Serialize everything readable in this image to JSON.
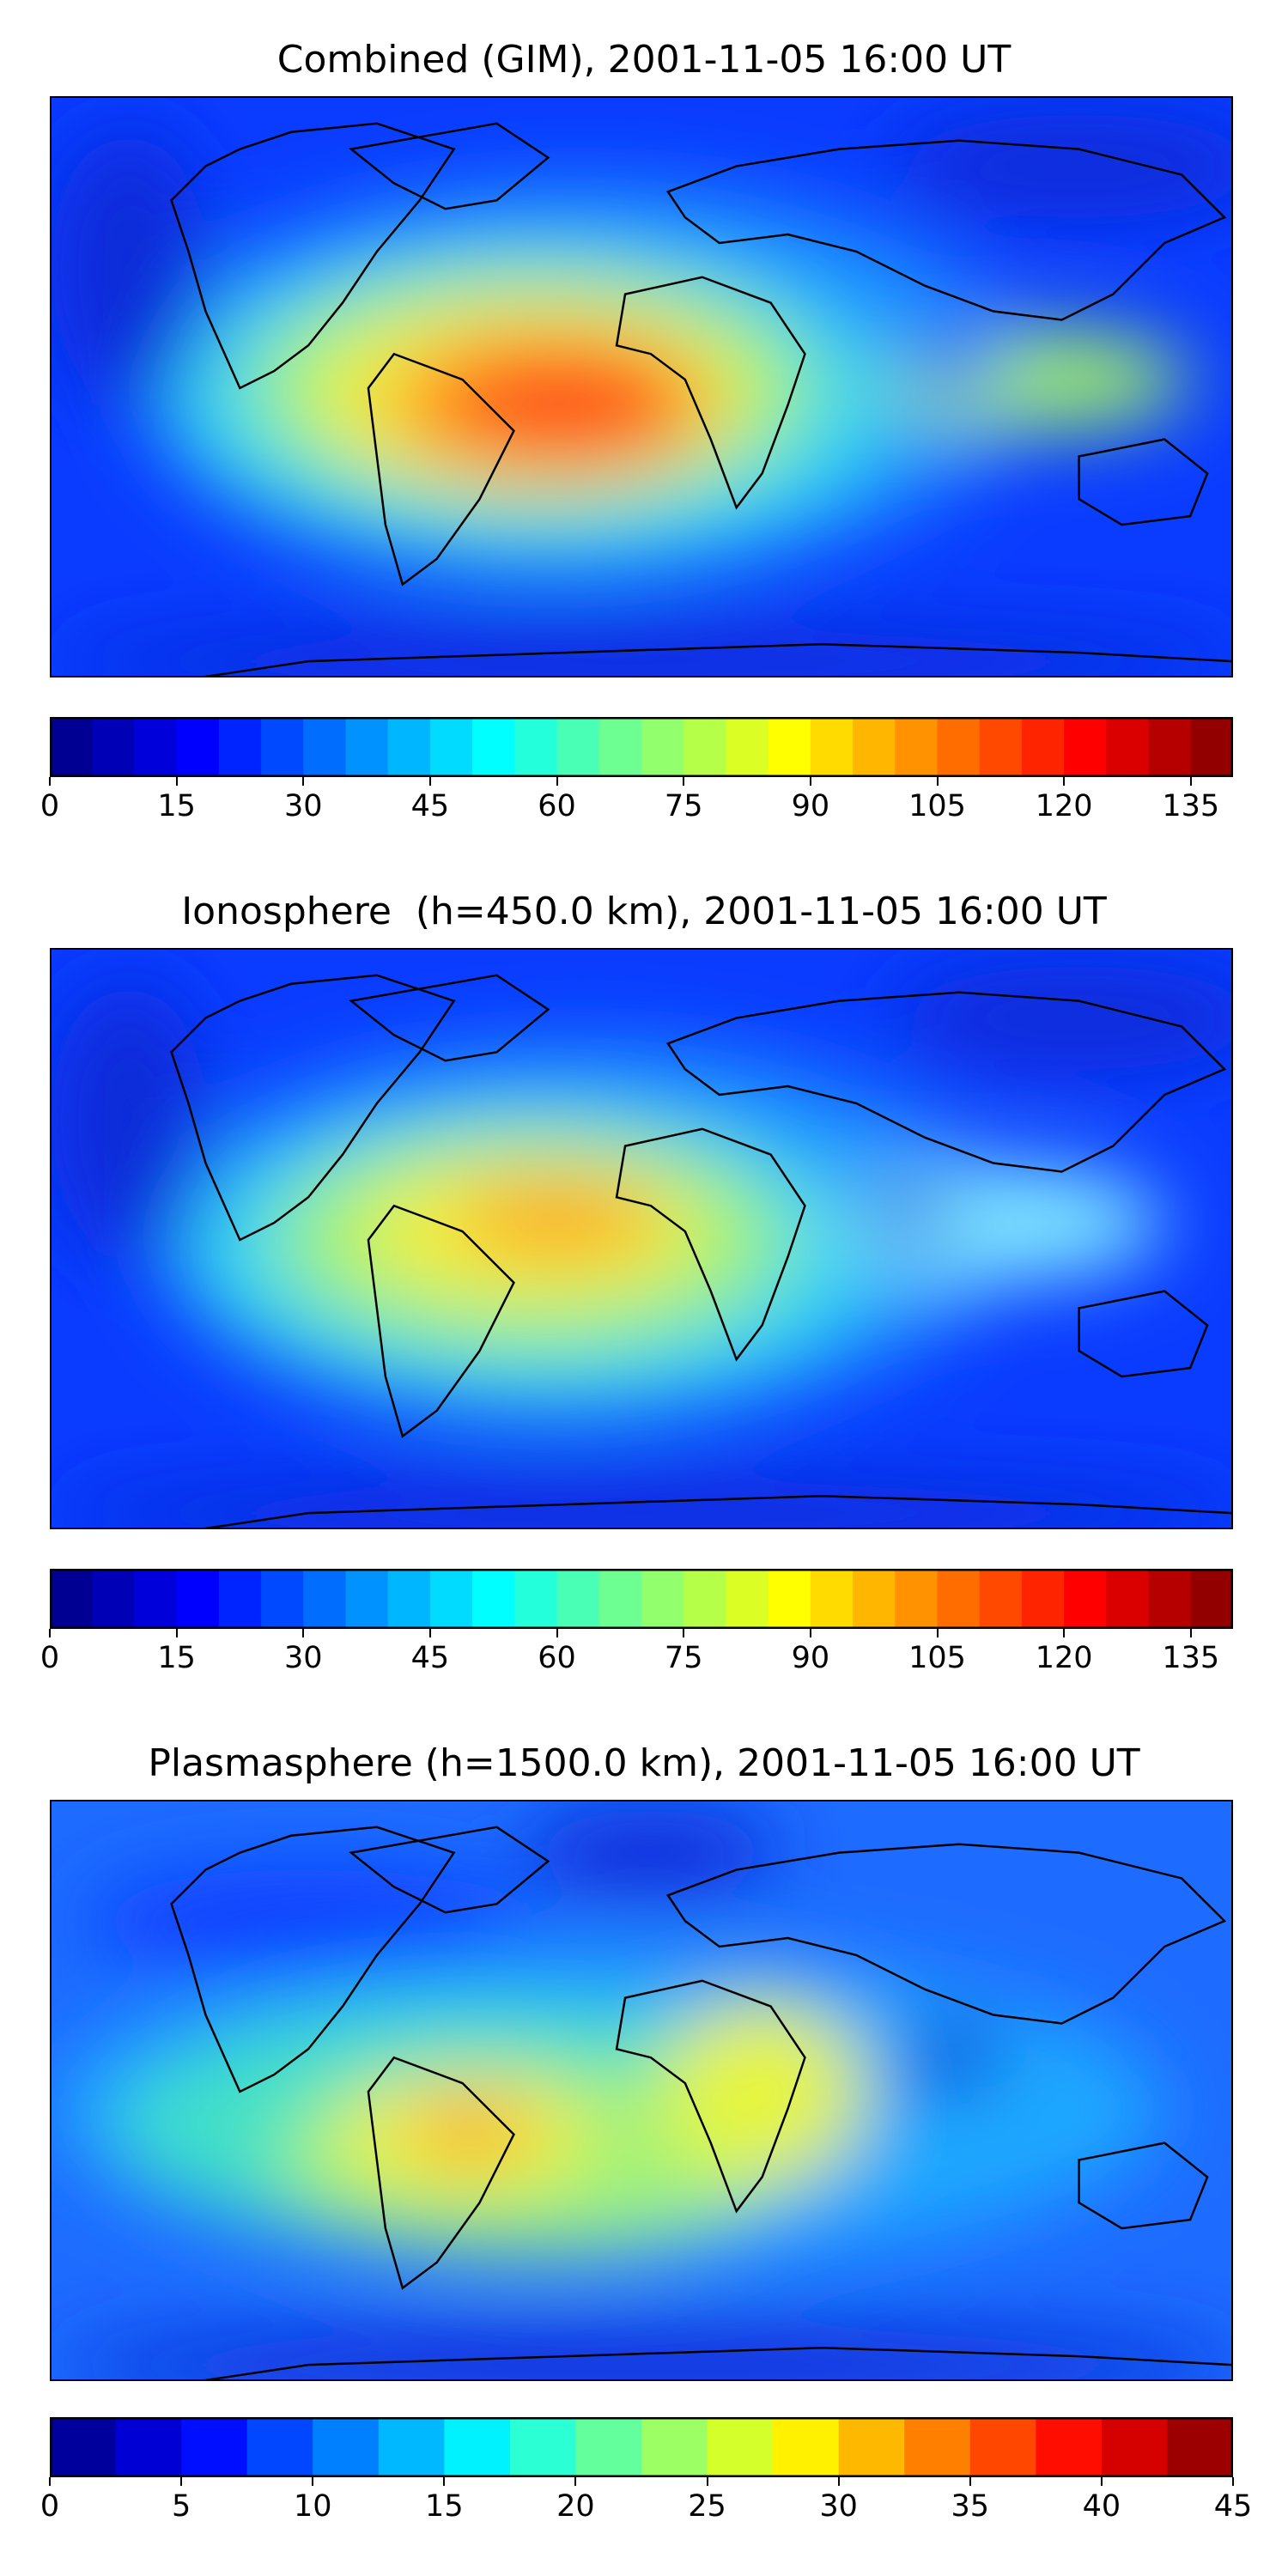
{
  "panels": [
    {
      "title": "Combined (GIM), 2001-11-05 16:00 UT",
      "colorbar": {
        "min": 0,
        "max": 140,
        "levels": 28,
        "ticks": [
          "0",
          "15",
          "30",
          "45",
          "60",
          "75",
          "90",
          "105",
          "120",
          "135"
        ]
      }
    },
    {
      "title": "Ionosphere  (h=450.0 km), 2001-11-05 16:00 UT",
      "colorbar": {
        "min": 0,
        "max": 140,
        "levels": 28,
        "ticks": [
          "0",
          "15",
          "30",
          "45",
          "60",
          "75",
          "90",
          "105",
          "120",
          "135"
        ]
      }
    },
    {
      "title": "Plasmasphere (h=1500.0 km), 2001-11-05 16:00 UT",
      "colorbar": {
        "min": 0,
        "max": 45,
        "levels": 18,
        "ticks": [
          "0",
          "5",
          "10",
          "15",
          "20",
          "25",
          "30",
          "35",
          "40",
          "45"
        ]
      }
    }
  ],
  "colormap": "jet",
  "colors": {
    "frame": "#000000",
    "coastline": "#000000"
  }
}
